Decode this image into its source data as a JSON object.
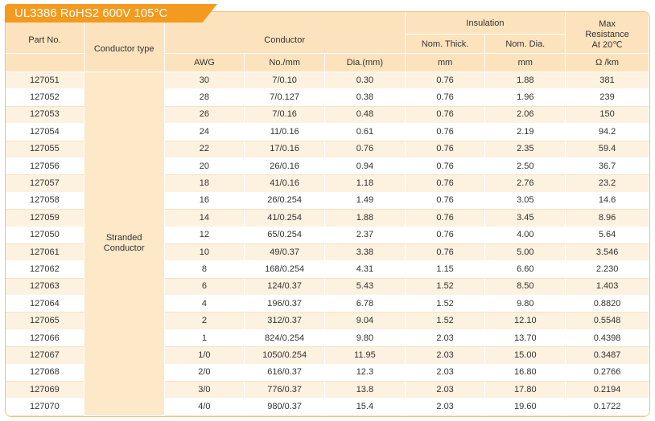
{
  "title": "UL3386 RoHS2 600V 105°C",
  "headers": {
    "part_no": "Part No.",
    "conductor_type": "Conductor type",
    "conductor": "Conductor",
    "insulation": "Insulation",
    "max_resistance_l1": "Max",
    "max_resistance_l2": "Resistance",
    "max_resistance_l3": "At 20℃",
    "awg": "AWG",
    "no_mm": "No./mm",
    "dia_mm": "Dia.(mm)",
    "nom_thick": "Nom. Thick.",
    "nom_dia": "Nom. Dia.",
    "unit_thick": "mm",
    "unit_dia": "mm",
    "unit_res": "Ω /km"
  },
  "conductor_type_value_l1": "Stranded",
  "conductor_type_value_l2": "Conductor",
  "rows": [
    {
      "part": "127051",
      "awg": "30",
      "no": "7/0.10",
      "dia": "0.30",
      "thick": "0.76",
      "ndia": "1.88",
      "res": "381"
    },
    {
      "part": "127052",
      "awg": "28",
      "no": "7/0.127",
      "dia": "0.38",
      "thick": "0.76",
      "ndia": "1.96",
      "res": "239"
    },
    {
      "part": "127053",
      "awg": "26",
      "no": "7/0.16",
      "dia": "0.48",
      "thick": "0.76",
      "ndia": "2.06",
      "res": "150"
    },
    {
      "part": "127054",
      "awg": "24",
      "no": "11/0.16",
      "dia": "0.61",
      "thick": "0.76",
      "ndia": "2.19",
      "res": "94.2"
    },
    {
      "part": "127055",
      "awg": "22",
      "no": "17/0.16",
      "dia": "0.76",
      "thick": "0.76",
      "ndia": "2.35",
      "res": "59.4"
    },
    {
      "part": "127056",
      "awg": "20",
      "no": "26/0.16",
      "dia": "0.94",
      "thick": "0.76",
      "ndia": "2.50",
      "res": "36.7"
    },
    {
      "part": "127057",
      "awg": "18",
      "no": "41/0.16",
      "dia": "1.18",
      "thick": "0.76",
      "ndia": "2.76",
      "res": "23.2"
    },
    {
      "part": "127058",
      "awg": "16",
      "no": "26/0.254",
      "dia": "1.49",
      "thick": "0.76",
      "ndia": "3.05",
      "res": "14.6"
    },
    {
      "part": "127059",
      "awg": "14",
      "no": "41/0.254",
      "dia": "1.88",
      "thick": "0.76",
      "ndia": "3.45",
      "res": "8.96"
    },
    {
      "part": "127050",
      "awg": "12",
      "no": "65/0.254",
      "dia": "2.37",
      "thick": "0.76",
      "ndia": "4.00",
      "res": "5.64"
    },
    {
      "part": "127061",
      "awg": "10",
      "no": "49/0.37",
      "dia": "3.38",
      "thick": "0.76",
      "ndia": "5.00",
      "res": "3.546"
    },
    {
      "part": "127062",
      "awg": "8",
      "no": "168/0.254",
      "dia": "4.31",
      "thick": "1.15",
      "ndia": "6.60",
      "res": "2.230"
    },
    {
      "part": "127063",
      "awg": "6",
      "no": "124/0.37",
      "dia": "5.43",
      "thick": "1.52",
      "ndia": "8.50",
      "res": "1.403"
    },
    {
      "part": "127064",
      "awg": "4",
      "no": "196/0.37",
      "dia": "6.78",
      "thick": "1.52",
      "ndia": "9.80",
      "res": "0.8820"
    },
    {
      "part": "127065",
      "awg": "2",
      "no": "312/0.37",
      "dia": "9.04",
      "thick": "1.52",
      "ndia": "12.10",
      "res": "0.5548"
    },
    {
      "part": "127066",
      "awg": "1",
      "no": "824/0.254",
      "dia": "9.80",
      "thick": "2.03",
      "ndia": "13.70",
      "res": "0.4398"
    },
    {
      "part": "127067",
      "awg": "1/0",
      "no": "1050/0.254",
      "dia": "11.95",
      "thick": "2.03",
      "ndia": "15.00",
      "res": "0.3487"
    },
    {
      "part": "127068",
      "awg": "2/0",
      "no": "616/0.37",
      "dia": "12.3",
      "thick": "2.03",
      "ndia": "16.80",
      "res": "0.2766"
    },
    {
      "part": "127069",
      "awg": "3/0",
      "no": "776/0.37",
      "dia": "13.8",
      "thick": "2.03",
      "ndia": "17.80",
      "res": "0.2194"
    },
    {
      "part": "127070",
      "awg": "4/0",
      "no": "980/0.37",
      "dia": "15.4",
      "thick": "2.03",
      "ndia": "19.60",
      "res": "0.1722"
    }
  ]
}
